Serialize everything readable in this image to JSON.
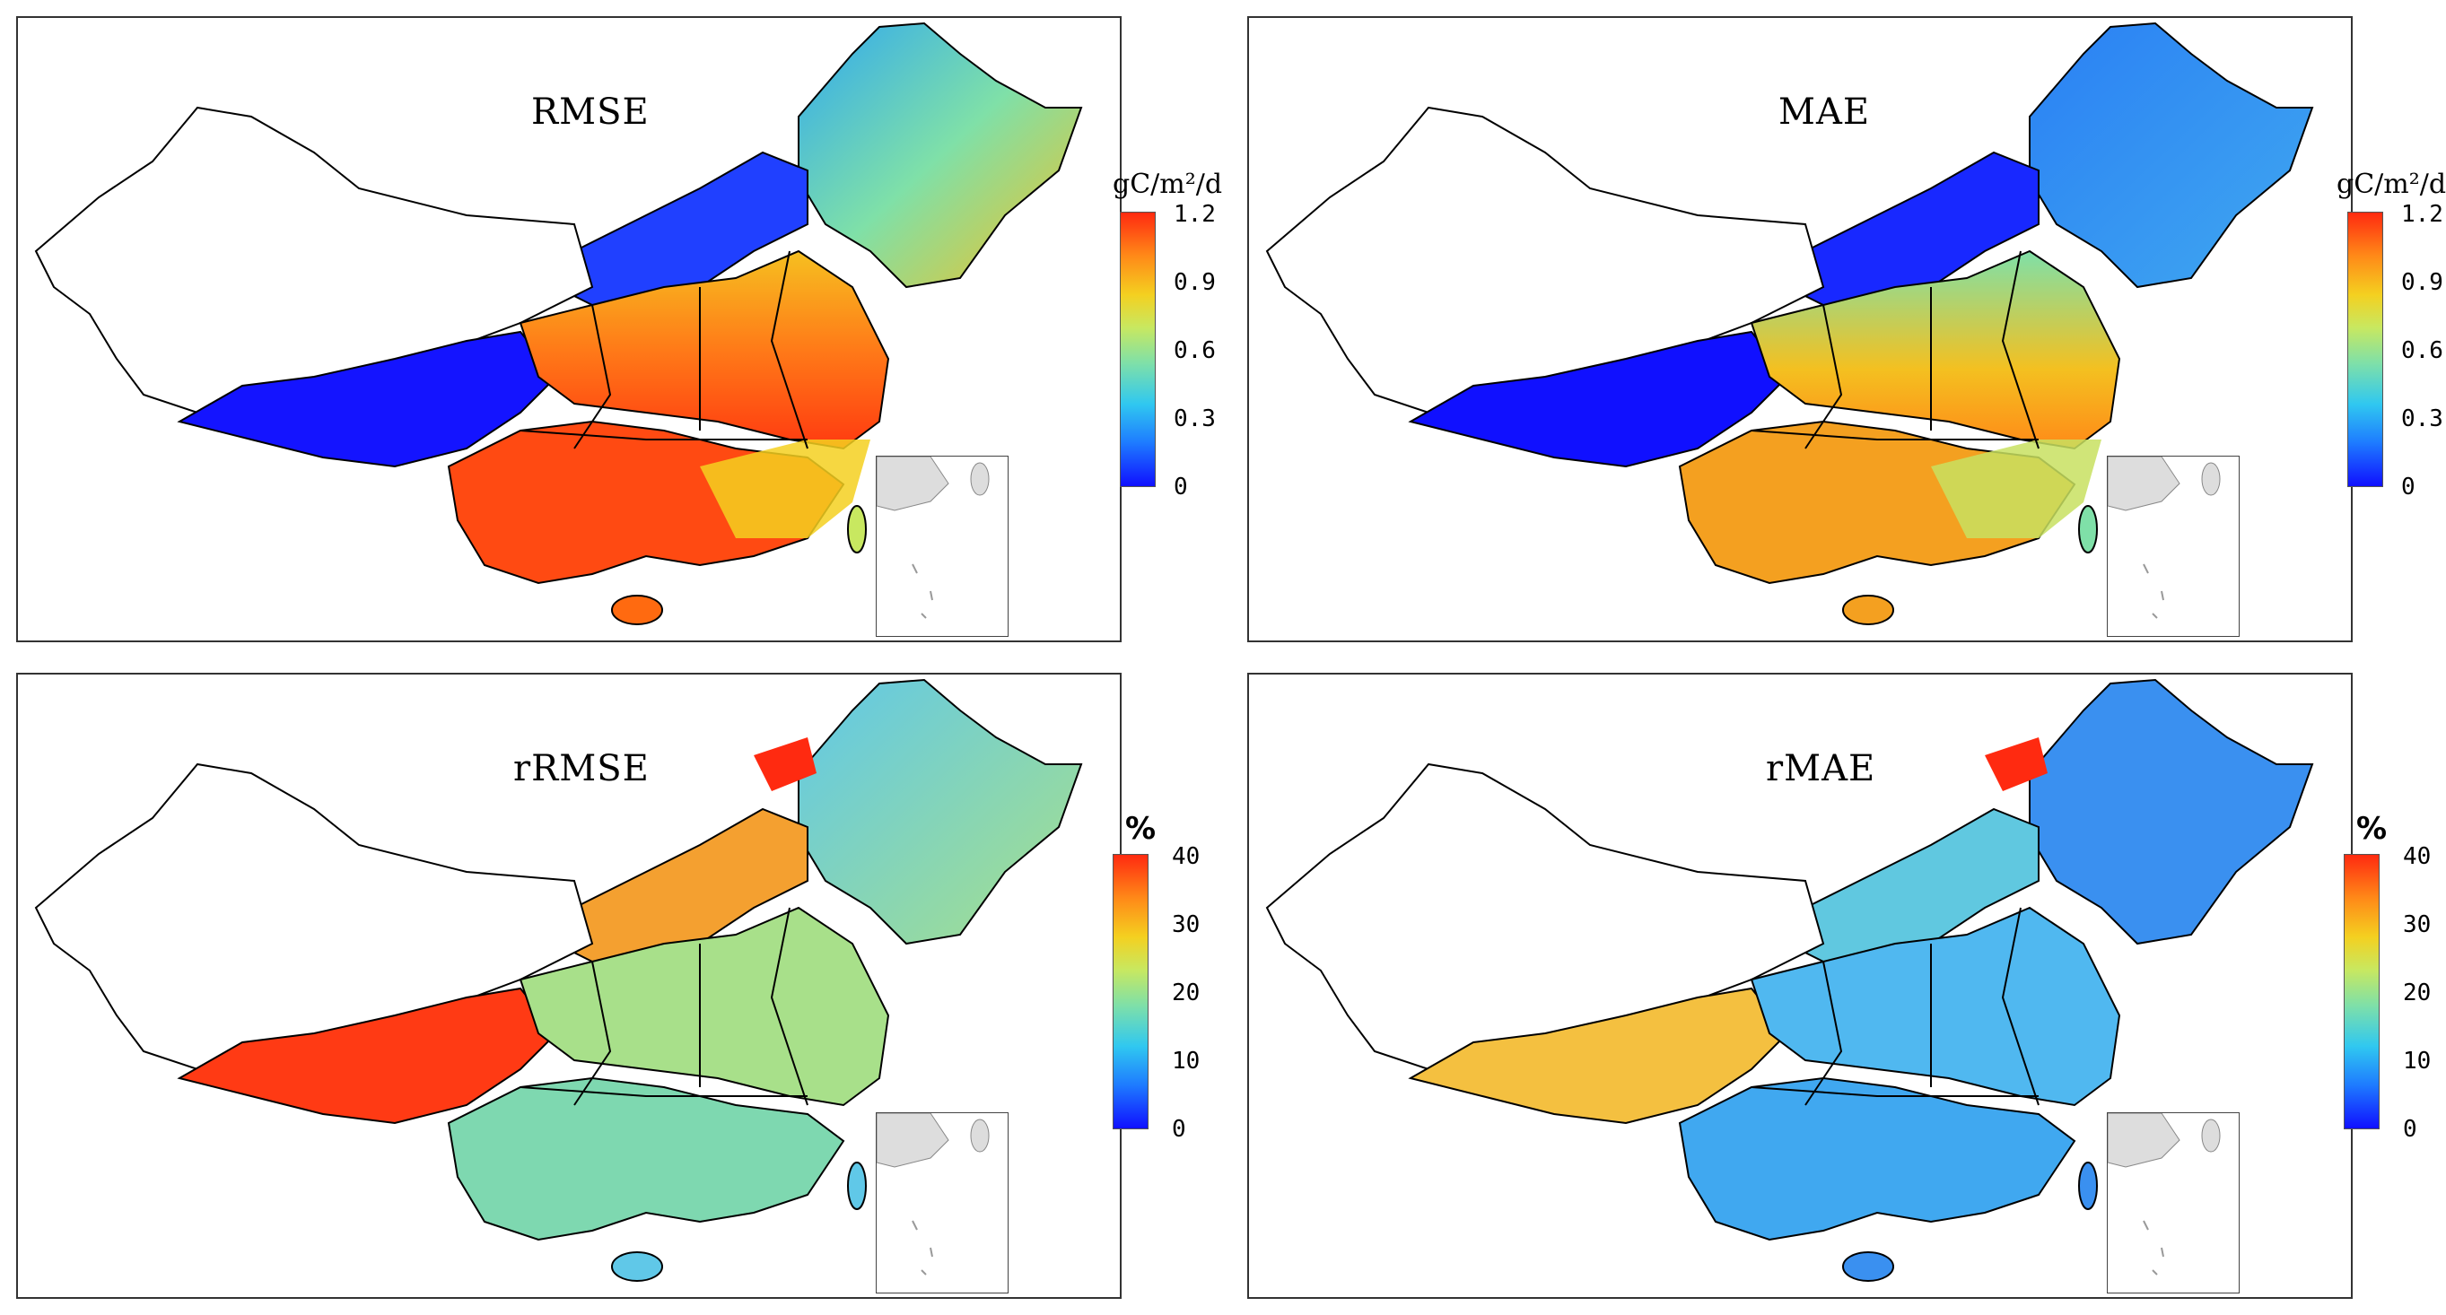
{
  "panels": [
    {
      "title": "RMSE",
      "legend_unit": "gC/m²/d",
      "ticks": [
        "1.2",
        "0.9",
        "0.6",
        "0.3",
        "0"
      ],
      "colormap": "jet-like",
      "dominant_colors": {
        "north_east": "#2fa8f0",
        "tibet": "#1414ff",
        "south": "#ff4a10",
        "east": "#f6c020"
      }
    },
    {
      "title": "MAE",
      "legend_unit": "gC/m²/d",
      "ticks": [
        "1.2",
        "0.9",
        "0.6",
        "0.3",
        "0"
      ],
      "colormap": "jet-like",
      "dominant_colors": {
        "north_east": "#2a80f4",
        "tibet": "#1010ff",
        "south": "#f4a020",
        "east": "#c8e060"
      }
    },
    {
      "title": "rRMSE",
      "legend_unit": "%",
      "ticks": [
        "40",
        "30",
        "20",
        "10",
        "0"
      ],
      "colormap": "jet-like",
      "dominant_colors": {
        "north_east": "#60c8e8",
        "tibet": "#ff2a10",
        "south": "#7ed8b0",
        "east": "#a8e08a"
      }
    },
    {
      "title": "rMAE",
      "legend_unit": "%",
      "ticks": [
        "40",
        "30",
        "20",
        "10",
        "0"
      ],
      "colormap": "jet-like",
      "dominant_colors": {
        "north_east": "#3a90f0",
        "tibet": "#f4c040",
        "south": "#40a8f0",
        "east": "#50b8f0"
      }
    }
  ],
  "colors": {
    "border": "#222222",
    "boundary": "#000000",
    "nodata": "#ffffff"
  }
}
